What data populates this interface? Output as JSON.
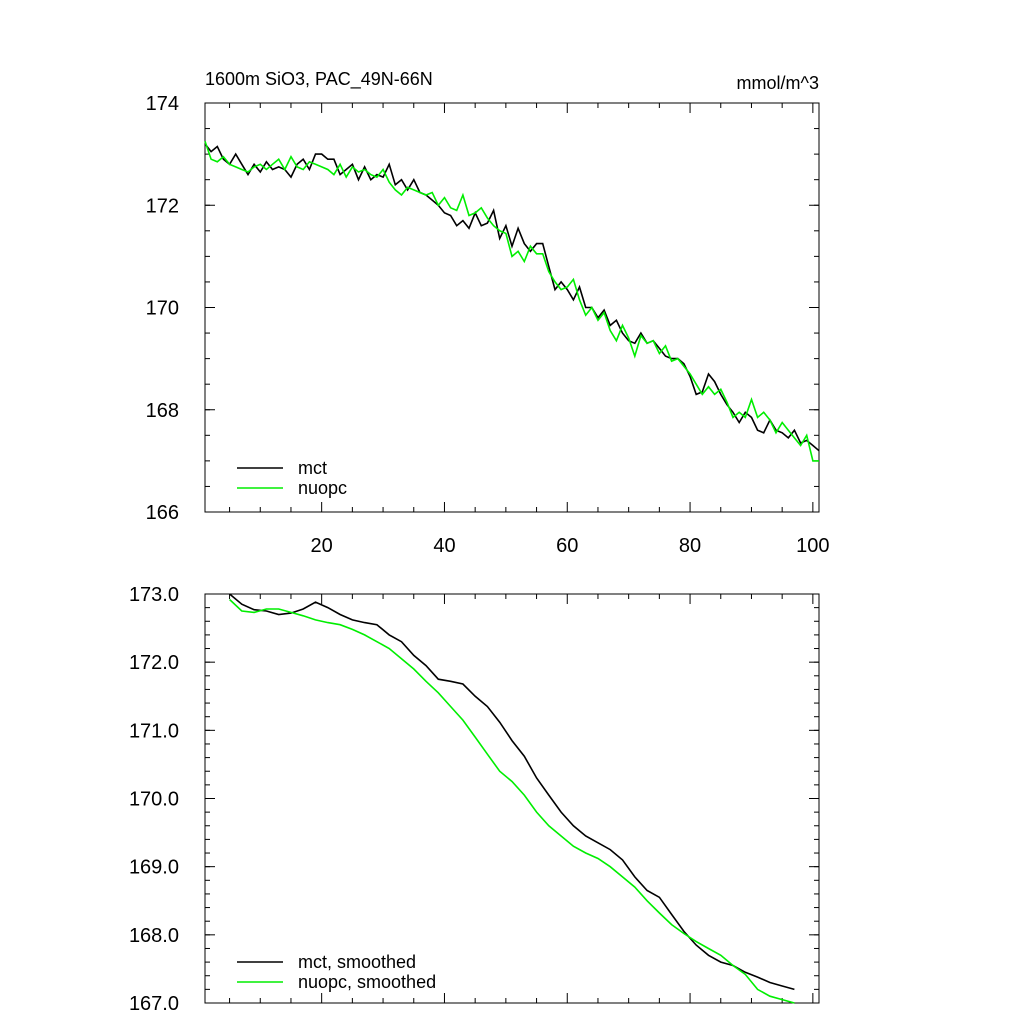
{
  "chart_data": [
    {
      "type": "line",
      "title_left": "1600m SiO3, PAC_49N-66N",
      "title_right": "mmol/m^3",
      "xlim": [
        1,
        101
      ],
      "ylim": [
        166,
        174
      ],
      "x_ticks": [
        20,
        40,
        60,
        80,
        100
      ],
      "y_ticks": [
        166,
        168,
        170,
        172,
        174
      ],
      "y_tick_labels": [
        "166",
        "168",
        "170",
        "172",
        "174"
      ],
      "legend_position": "bottom-left",
      "x": [
        1,
        2,
        3,
        4,
        5,
        6,
        7,
        8,
        9,
        10,
        11,
        12,
        13,
        14,
        15,
        16,
        17,
        18,
        19,
        20,
        21,
        22,
        23,
        24,
        25,
        26,
        27,
        28,
        29,
        30,
        31,
        32,
        33,
        34,
        35,
        36,
        37,
        38,
        39,
        40,
        41,
        42,
        43,
        44,
        45,
        46,
        47,
        48,
        49,
        50,
        51,
        52,
        53,
        54,
        55,
        56,
        57,
        58,
        59,
        60,
        61,
        62,
        63,
        64,
        65,
        66,
        67,
        68,
        69,
        70,
        71,
        72,
        73,
        74,
        75,
        76,
        77,
        78,
        79,
        80,
        81,
        82,
        83,
        84,
        85,
        86,
        87,
        88,
        89,
        90,
        91,
        92,
        93,
        94,
        95,
        96,
        97,
        98,
        99,
        100,
        101
      ],
      "series": [
        {
          "name": "mct",
          "color": "#000000",
          "values": [
            173.2,
            173.05,
            173.15,
            172.9,
            172.8,
            173.0,
            172.8,
            172.6,
            172.8,
            172.65,
            172.85,
            172.7,
            172.75,
            172.7,
            172.55,
            172.8,
            172.9,
            172.7,
            173.0,
            173.0,
            172.9,
            172.9,
            172.6,
            172.7,
            172.8,
            172.5,
            172.75,
            172.5,
            172.6,
            172.55,
            172.8,
            172.4,
            172.5,
            172.3,
            172.5,
            172.25,
            172.2,
            172.1,
            172.0,
            171.85,
            171.8,
            171.6,
            171.7,
            171.55,
            171.85,
            171.6,
            171.65,
            171.9,
            171.35,
            171.6,
            171.2,
            171.55,
            171.25,
            171.1,
            171.25,
            171.25,
            170.8,
            170.35,
            170.5,
            170.35,
            170.15,
            170.4,
            170.0,
            170.0,
            169.8,
            169.95,
            169.65,
            169.75,
            169.5,
            169.35,
            169.3,
            169.5,
            169.3,
            169.35,
            169.2,
            169.05,
            169.0,
            169.0,
            168.9,
            168.65,
            168.3,
            168.35,
            168.7,
            168.55,
            168.3,
            168.1,
            167.95,
            167.75,
            167.95,
            167.85,
            167.6,
            167.55,
            167.8,
            167.6,
            167.55,
            167.45,
            167.6,
            167.35,
            167.4,
            167.3,
            167.2
          ]
        },
        {
          "name": "nuopc",
          "color": "#00ee00",
          "values": [
            173.25,
            172.9,
            172.85,
            172.95,
            172.8,
            172.75,
            172.7,
            172.65,
            172.75,
            172.8,
            172.7,
            172.8,
            172.9,
            172.7,
            172.95,
            172.75,
            172.7,
            172.85,
            172.8,
            172.75,
            172.7,
            172.6,
            172.8,
            172.55,
            172.75,
            172.65,
            172.7,
            172.6,
            172.55,
            172.7,
            172.45,
            172.3,
            172.2,
            172.35,
            172.3,
            172.25,
            172.2,
            172.25,
            172.0,
            172.15,
            171.95,
            171.9,
            172.2,
            171.8,
            171.85,
            171.95,
            171.75,
            171.6,
            171.5,
            171.45,
            171.0,
            171.1,
            170.9,
            171.2,
            171.05,
            171.05,
            170.7,
            170.5,
            170.35,
            170.4,
            170.55,
            170.15,
            169.85,
            170.0,
            169.75,
            169.9,
            169.55,
            169.35,
            169.65,
            169.4,
            169.05,
            169.45,
            169.3,
            169.35,
            169.1,
            169.25,
            168.95,
            169.0,
            168.85,
            168.7,
            168.5,
            168.3,
            168.45,
            168.3,
            168.4,
            168.15,
            167.85,
            167.95,
            167.85,
            168.2,
            167.85,
            167.95,
            167.8,
            167.55,
            167.75,
            167.6,
            167.45,
            167.3,
            167.5,
            167.0,
            167.0
          ]
        }
      ]
    },
    {
      "type": "line",
      "xlim": [
        1,
        101
      ],
      "ylim": [
        167.0,
        173.0
      ],
      "x_ticks": [
        20,
        40,
        60,
        80,
        100
      ],
      "y_ticks": [
        167,
        168,
        169,
        170,
        171,
        172,
        173
      ],
      "y_tick_labels": [
        "167.0",
        "168.0",
        "169.0",
        "170.0",
        "171.0",
        "172.0",
        "173.0"
      ],
      "legend_position": "bottom-left",
      "x": [
        5,
        7,
        9,
        11,
        13,
        15,
        17,
        19,
        21,
        23,
        25,
        27,
        29,
        31,
        33,
        35,
        37,
        39,
        41,
        43,
        45,
        47,
        49,
        51,
        53,
        55,
        57,
        59,
        61,
        63,
        65,
        67,
        69,
        71,
        73,
        75,
        77,
        79,
        81,
        83,
        85,
        87,
        89,
        91,
        93,
        95,
        97
      ],
      "series": [
        {
          "name": "mct, smoothed",
          "color": "#000000",
          "values": [
            173.0,
            172.85,
            172.77,
            172.75,
            172.7,
            172.72,
            172.78,
            172.88,
            172.8,
            172.7,
            172.62,
            172.58,
            172.55,
            172.4,
            172.3,
            172.1,
            171.95,
            171.75,
            171.72,
            171.68,
            171.5,
            171.35,
            171.12,
            170.85,
            170.62,
            170.3,
            170.05,
            169.8,
            169.6,
            169.45,
            169.35,
            169.25,
            169.1,
            168.85,
            168.65,
            168.55,
            168.3,
            168.05,
            167.85,
            167.7,
            167.6,
            167.55,
            167.45,
            167.38,
            167.3,
            167.25,
            167.2
          ]
        },
        {
          "name": "nuopc, smoothed",
          "color": "#00ee00",
          "values": [
            172.92,
            172.75,
            172.73,
            172.78,
            172.78,
            172.73,
            172.68,
            172.62,
            172.58,
            172.55,
            172.48,
            172.4,
            172.3,
            172.2,
            172.05,
            171.9,
            171.72,
            171.55,
            171.35,
            171.15,
            170.9,
            170.65,
            170.4,
            170.25,
            170.05,
            169.8,
            169.6,
            169.45,
            169.3,
            169.2,
            169.12,
            169.0,
            168.85,
            168.7,
            168.5,
            168.32,
            168.15,
            168.02,
            167.9,
            167.8,
            167.7,
            167.55,
            167.42,
            167.2,
            167.1,
            167.05,
            167.0
          ]
        }
      ]
    }
  ]
}
